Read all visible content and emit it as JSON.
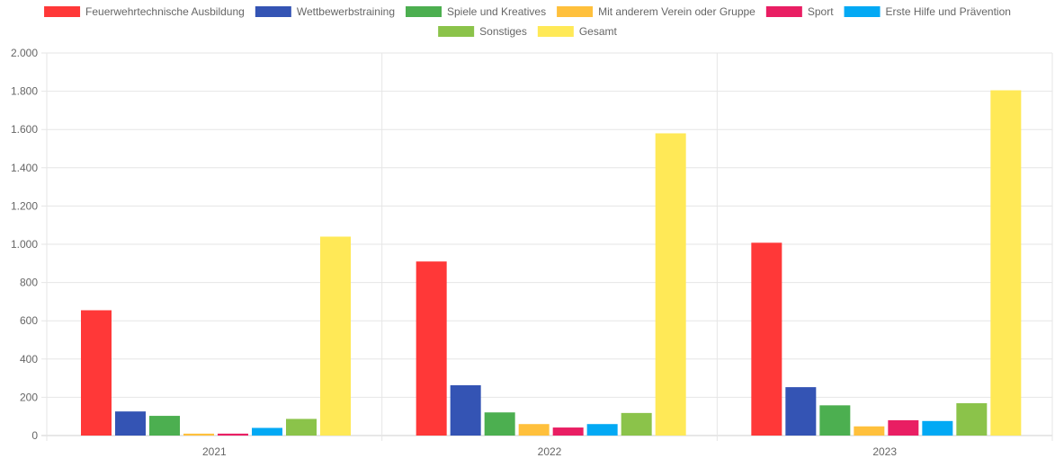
{
  "chart_data": {
    "type": "bar",
    "categories": [
      "2021",
      "2022",
      "2023"
    ],
    "series": [
      {
        "name": "Feuerwehrtechnische Ausbildung",
        "color": "#ff3838",
        "values": [
          655,
          910,
          1008
        ]
      },
      {
        "name": "Wettbewerbstraining",
        "color": "#3454b4",
        "values": [
          126,
          263,
          253
        ]
      },
      {
        "name": "Spiele und Kreatives",
        "color": "#4caf50",
        "values": [
          103,
          121,
          158
        ]
      },
      {
        "name": "Mit anderem Verein oder Gruppe",
        "color": "#ffc03c",
        "values": [
          10,
          60,
          48
        ]
      },
      {
        "name": "Sport",
        "color": "#e91e63",
        "values": [
          10,
          42,
          80
        ]
      },
      {
        "name": "Erste Hilfe und Prävention",
        "color": "#03a9f4",
        "values": [
          40,
          60,
          76
        ]
      },
      {
        "name": "Sonstiges",
        "color": "#8bc34a",
        "values": [
          87,
          118,
          169
        ]
      },
      {
        "name": "Gesamt",
        "color": "#ffe957",
        "values": [
          1040,
          1580,
          1805
        ]
      }
    ],
    "ylim": [
      0,
      2000
    ],
    "yticks": [
      0,
      200,
      400,
      600,
      800,
      1000,
      1200,
      1400,
      1600,
      1800,
      2000
    ],
    "ytick_labels": [
      "0",
      "200",
      "400",
      "600",
      "800",
      "1.000",
      "1.200",
      "1.400",
      "1.600",
      "1.800",
      "2.000"
    ],
    "grid": true,
    "legend_position": "top"
  }
}
